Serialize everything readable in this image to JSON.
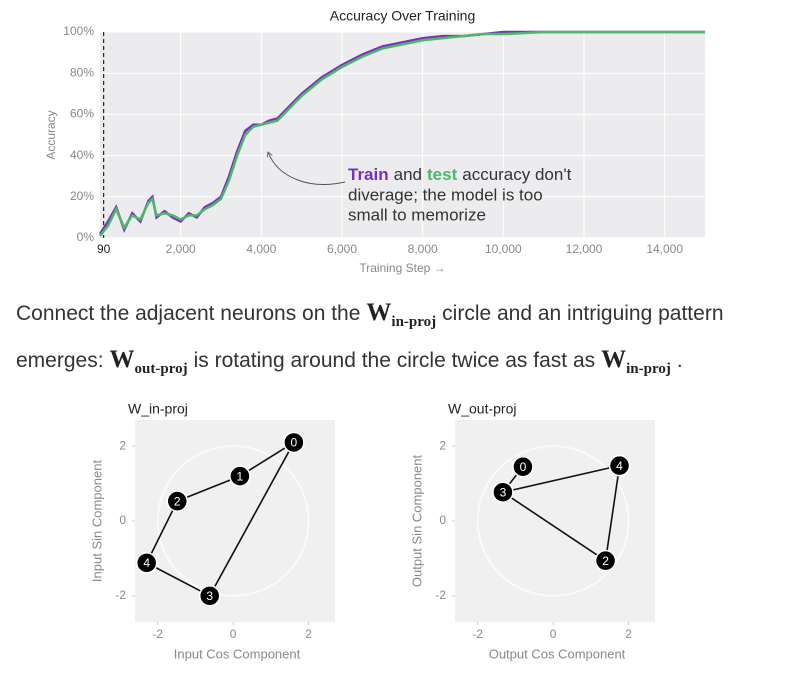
{
  "chart_data": [
    {
      "type": "line",
      "title": "Accuracy Over Training",
      "xlabel": "Training Step →",
      "ylabel": "Accuracy",
      "x": [
        0,
        200,
        400,
        600,
        800,
        1000,
        1200,
        1300,
        1400,
        1600,
        1800,
        2000,
        2200,
        2400,
        2600,
        2800,
        3000,
        3200,
        3400,
        3600,
        3800,
        4000,
        4200,
        4400,
        4600,
        4800,
        5000,
        5500,
        6000,
        6500,
        7000,
        7500,
        8000,
        8500,
        9000,
        9500,
        10000,
        11000,
        12000,
        13000,
        14000,
        15000
      ],
      "series": [
        {
          "name": "Train",
          "color": "#7b2fbe",
          "values": [
            2,
            8,
            15,
            4,
            12,
            8,
            18,
            20,
            10,
            13,
            10,
            8,
            12,
            10,
            15,
            17,
            20,
            30,
            42,
            52,
            55,
            55,
            57,
            58,
            62,
            66,
            70,
            78,
            84,
            89,
            93,
            95,
            97,
            98,
            98,
            99,
            100,
            100,
            100,
            100,
            100,
            100
          ]
        },
        {
          "name": "test",
          "color": "#4cb86a",
          "values": [
            1,
            6,
            14,
            5,
            11,
            9,
            17,
            19,
            11,
            12,
            11,
            9,
            11,
            11,
            14,
            16,
            19,
            28,
            40,
            50,
            54,
            55,
            56,
            57,
            61,
            65,
            69,
            77,
            83,
            88,
            92,
            94,
            96,
            97,
            98,
            99,
            99,
            100,
            100,
            100,
            100,
            100
          ]
        }
      ],
      "xlim": [
        0,
        15000
      ],
      "ylim": [
        0,
        100
      ],
      "xticks": [
        {
          "value": 2000,
          "label": "2,000"
        },
        {
          "value": 4000,
          "label": "4,000"
        },
        {
          "value": 6000,
          "label": "6,000"
        },
        {
          "value": 8000,
          "label": "8,000"
        },
        {
          "value": 10000,
          "label": "10,000"
        },
        {
          "value": 12000,
          "label": "12,000"
        },
        {
          "value": 14000,
          "label": "14,000"
        }
      ],
      "yticks": [
        {
          "value": 0,
          "label": "0%"
        },
        {
          "value": 20,
          "label": "20%"
        },
        {
          "value": 40,
          "label": "40%"
        },
        {
          "value": 60,
          "label": "60%"
        },
        {
          "value": 80,
          "label": "80%"
        },
        {
          "value": 100,
          "label": "100%"
        }
      ],
      "marker": {
        "value": 90,
        "label": "90"
      },
      "grid": true,
      "annotation": [
        "and",
        "accuracy don't",
        "diverage; the model is too",
        "small to memorize"
      ]
    },
    {
      "type": "scatter",
      "title": "W_in-proj",
      "xlabel": "Input Cos Component",
      "ylabel": "Input Sin Component",
      "labels": [
        "0",
        "1",
        "2",
        "4",
        "3"
      ],
      "x": [
        1.61,
        0.18,
        -1.48,
        -2.29,
        -0.62
      ],
      "y": [
        2.1,
        1.2,
        0.53,
        -1.12,
        -2.0
      ],
      "links": [
        [
          0,
          1
        ],
        [
          1,
          2
        ],
        [
          2,
          3
        ],
        [
          3,
          4
        ],
        [
          4,
          0
        ]
      ],
      "xlim": [
        -2.6,
        2.7
      ],
      "ylim": [
        -2.7,
        2.7
      ],
      "xticks": [
        -2,
        0,
        2
      ],
      "yticks": [
        -2,
        0,
        2
      ]
    },
    {
      "type": "scatter",
      "title": "W_out-proj",
      "xlabel": "Output Cos Component",
      "ylabel": "Output Sin Component",
      "labels": [
        "0",
        "3",
        "4",
        "2"
      ],
      "x": [
        -0.8,
        -1.33,
        1.76,
        1.39
      ],
      "y": [
        1.45,
        0.77,
        1.48,
        -1.06
      ],
      "links": [
        [
          0,
          1
        ],
        [
          1,
          2
        ],
        [
          2,
          3
        ],
        [
          3,
          1
        ]
      ],
      "xlim": [
        -2.6,
        2.7
      ],
      "ylim": [
        -2.7,
        2.7
      ],
      "xticks": [
        -2,
        0,
        2
      ],
      "yticks": [
        -2,
        0,
        2
      ]
    }
  ],
  "paragraph": [
    "Connect the adjacent neurons on the",
    {
      "symbol": "W",
      "subscript": "in-proj"
    },
    "circle and an intriguing pattern emerges:",
    {
      "symbol": "W",
      "subscript": "out-proj"
    },
    "is rotating around the circle twice as fast as",
    {
      "symbol": "W",
      "subscript": "in-proj"
    },
    "."
  ]
}
